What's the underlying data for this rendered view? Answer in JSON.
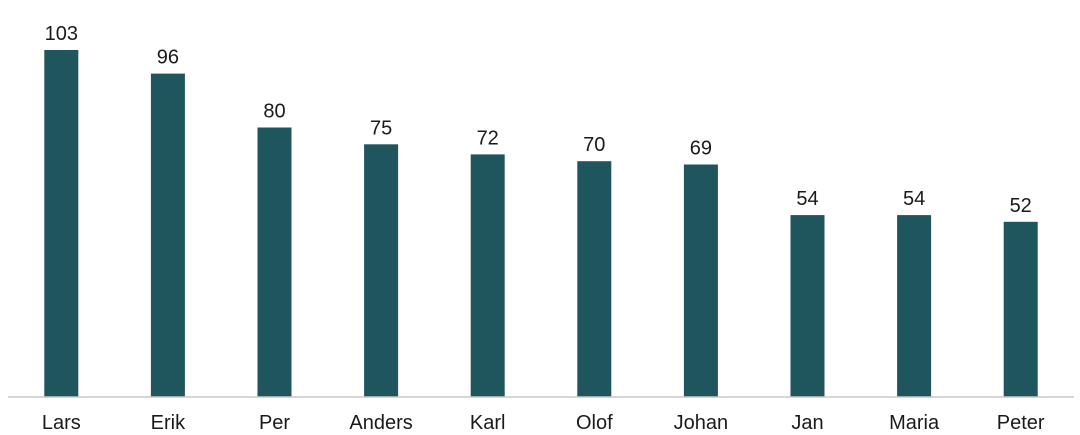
{
  "chart_data": {
    "type": "bar",
    "categories": [
      "Lars",
      "Erik",
      "Per",
      "Anders",
      "Karl",
      "Olof",
      "Johan",
      "Jan",
      "Maria",
      "Peter"
    ],
    "values": [
      103,
      96,
      80,
      75,
      72,
      70,
      69,
      54,
      54,
      52
    ],
    "title": "",
    "xlabel": "",
    "ylabel": "",
    "ylim": [
      0,
      103
    ],
    "grid": false,
    "legend": "none",
    "bar_color": "#1f565e"
  }
}
